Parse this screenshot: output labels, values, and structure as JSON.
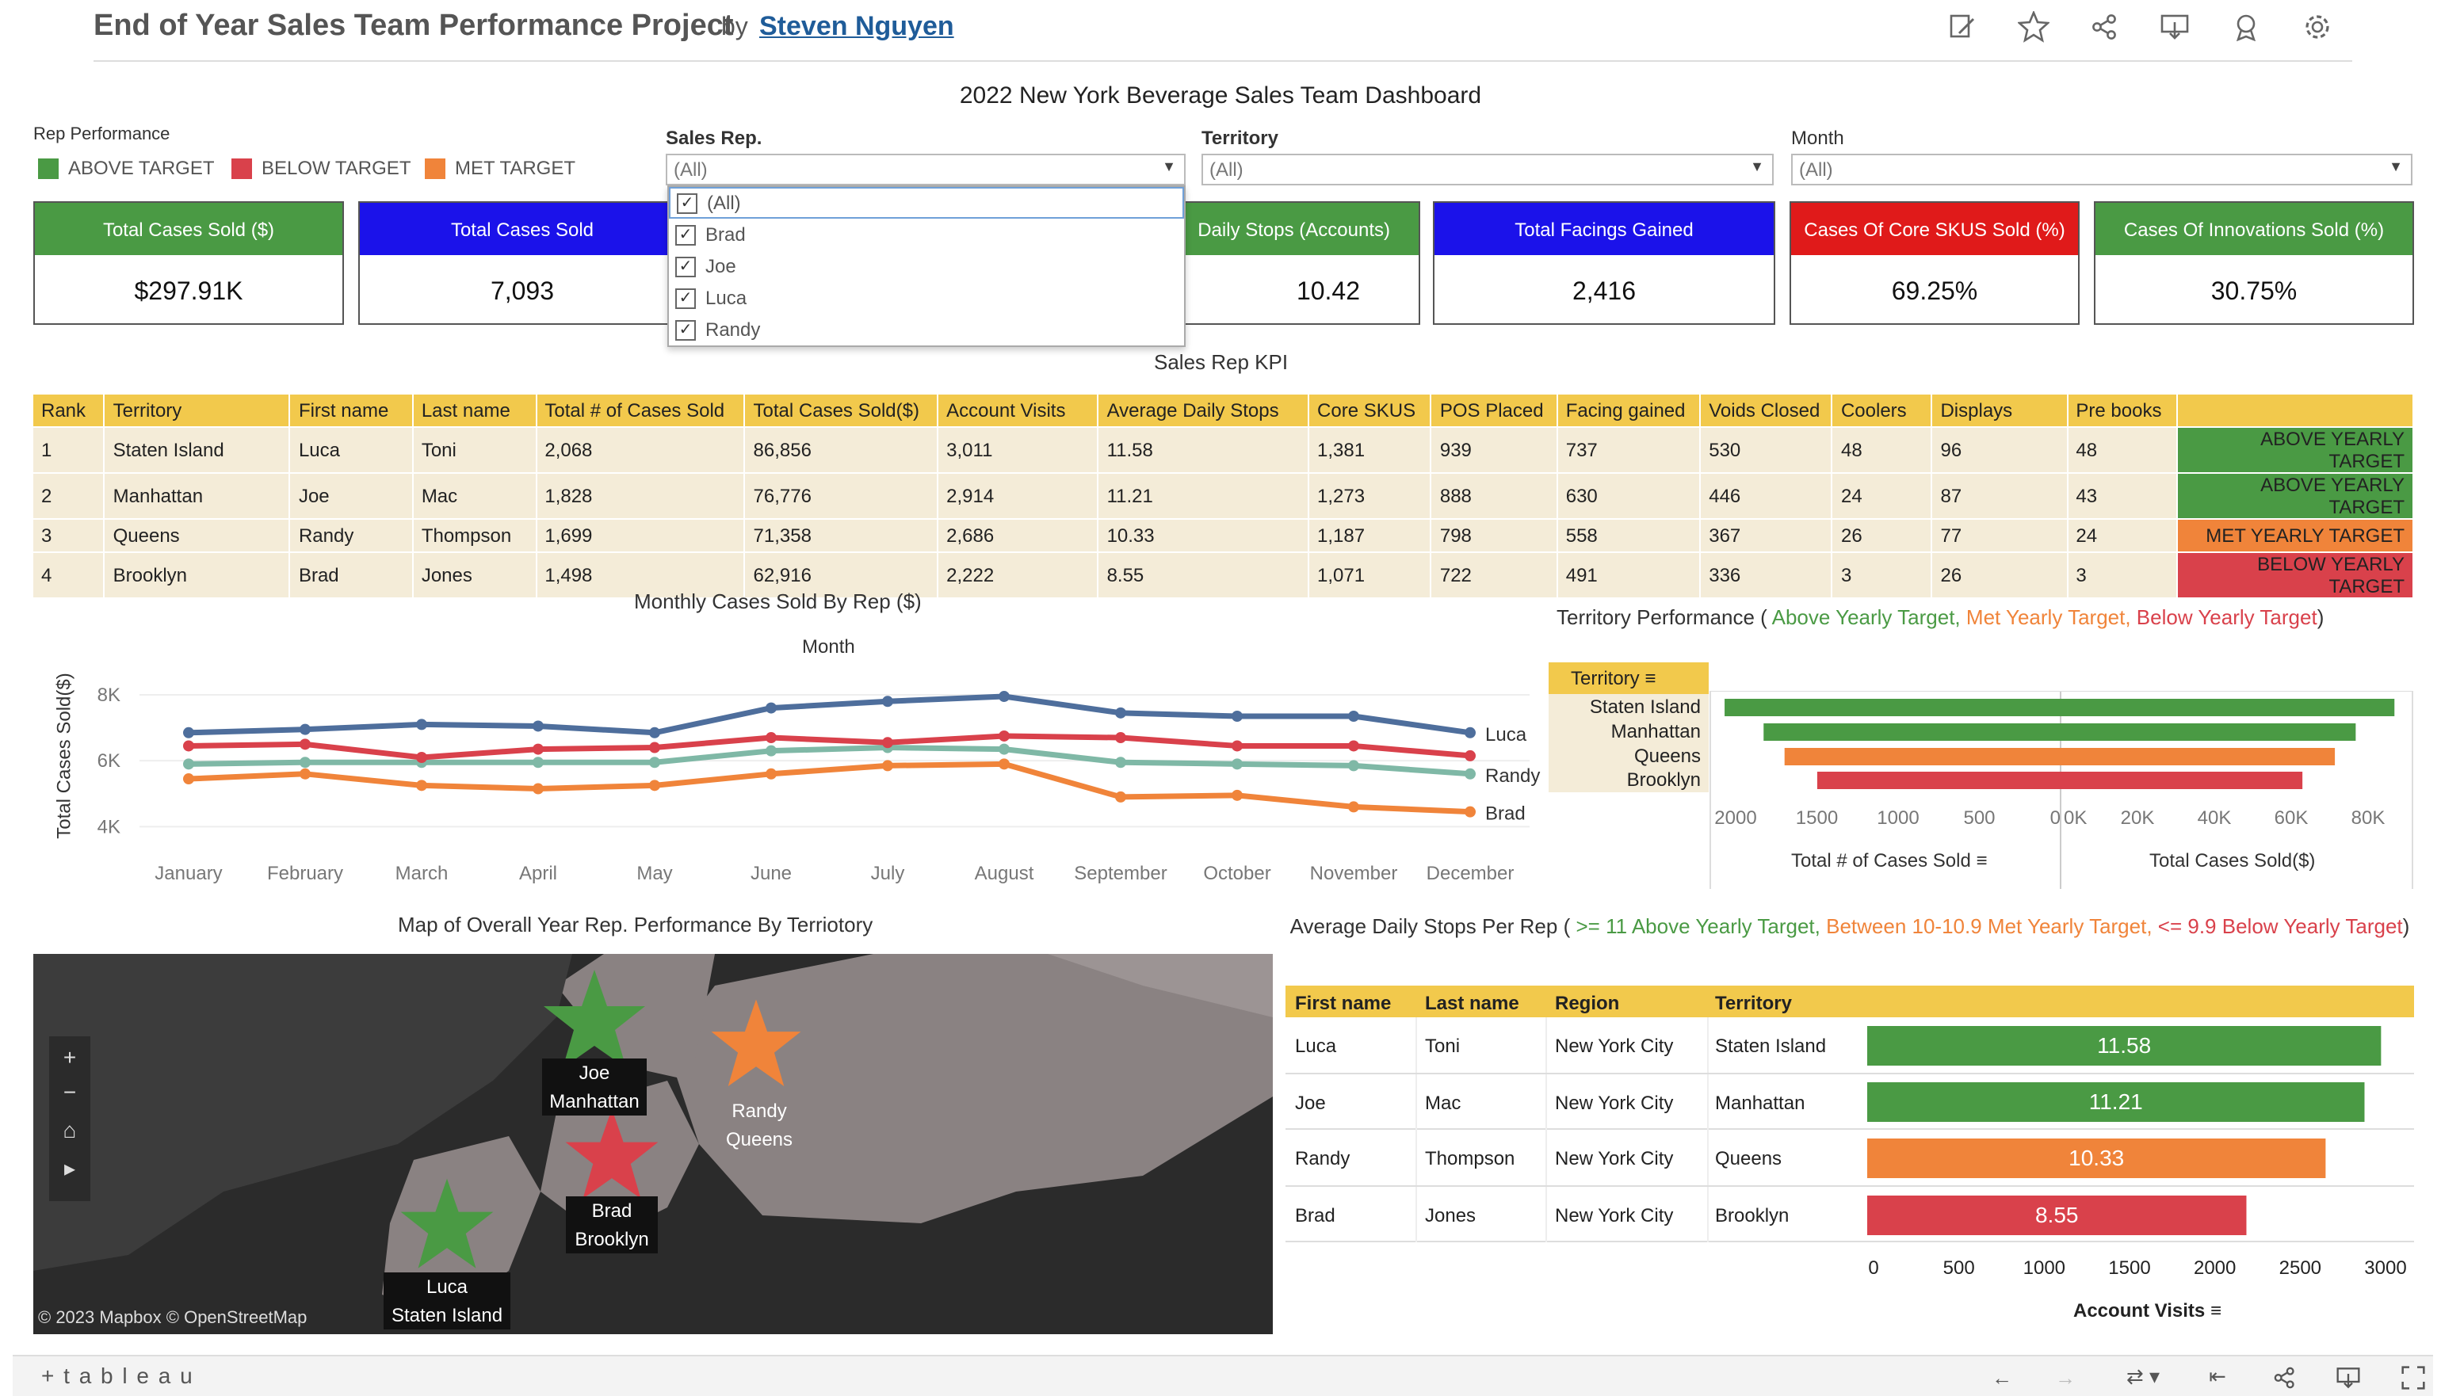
{
  "header": {
    "title": "End of Year Sales Team Performance Project",
    "by": "by",
    "author": "Steven Nguyen"
  },
  "toolbar_icons": [
    "edit-icon",
    "star-icon",
    "share-icon",
    "download-icon",
    "badge-icon",
    "gear-icon"
  ],
  "dashboard_title": "2022 New York Beverage Sales Team Dashboard",
  "legend": {
    "title": "Rep Performance",
    "items": [
      {
        "label": "ABOVE TARGET",
        "color": "#4a9a44"
      },
      {
        "label": "BELOW TARGET",
        "color": "#d9414b"
      },
      {
        "label": "MET TARGET",
        "color": "#f0843a"
      }
    ]
  },
  "filters": {
    "sales_rep": {
      "label": "Sales Rep.",
      "value": "(All)"
    },
    "territory": {
      "label": "Territory",
      "value": "(All)"
    },
    "month": {
      "label": "Month",
      "value": "(All)"
    }
  },
  "dropdown": {
    "items": [
      "(All)",
      "Brad",
      "Joe",
      "Luca",
      "Randy"
    ],
    "checkmark": "✓"
  },
  "kpis": [
    {
      "title": "Total Cases Sold ($)",
      "value": "$297.91K",
      "color": "#4a9a44"
    },
    {
      "title": "Total Cases Sold",
      "value": "7,093",
      "color": "#1b12ea"
    },
    {
      "title": "Daily Stops  (Accounts)",
      "value": "10.42",
      "color": "#4a9a44"
    },
    {
      "title": "Total Facings Gained",
      "value": "2,416",
      "color": "#1b12ea"
    },
    {
      "title": "Cases Of Core SKUS Sold (%)",
      "value": "69.25%",
      "color": "#e01a1a"
    },
    {
      "title": "Cases Of Innovations Sold (%)",
      "value": "30.75%",
      "color": "#4a9a44"
    }
  ],
  "kpi_table": {
    "title": "Sales Rep KPI",
    "headers": [
      "Rank",
      "Territory",
      "First name",
      "Last name",
      "Total # of Cases Sold",
      "Total Cases Sold($)",
      "Account Visits",
      "Average Daily Stops",
      "Core SKUS",
      "POS Placed",
      "Facing gained",
      "Voids Closed",
      "Coolers",
      "Displays",
      "Pre books",
      ""
    ],
    "rows": [
      [
        "1",
        "Staten Island",
        "Luca",
        "Toni",
        "2,068",
        "86,856",
        "3,011",
        "11.58",
        "1,381",
        "939",
        "737",
        "530",
        "48",
        "96",
        "48",
        "ABOVE YEARLY TARGET"
      ],
      [
        "2",
        "Manhattan",
        "Joe",
        "Mac",
        "1,828",
        "76,776",
        "2,914",
        "11.21",
        "1,273",
        "888",
        "630",
        "446",
        "24",
        "87",
        "43",
        "ABOVE YEARLY TARGET"
      ],
      [
        "3",
        "Queens",
        "Randy",
        "Thompson",
        "1,699",
        "71,358",
        "2,686",
        "10.33",
        "1,187",
        "798",
        "558",
        "367",
        "26",
        "77",
        "24",
        "MET YEARLY TARGET"
      ],
      [
        "4",
        "Brooklyn",
        "Brad",
        "Jones",
        "1,498",
        "62,916",
        "2,222",
        "8.55",
        "1,071",
        "722",
        "491",
        "336",
        "3",
        "26",
        "3",
        "BELOW YEARLY TARGET"
      ]
    ],
    "target_colors": [
      "#4a9a44",
      "#4a9a44",
      "#f0843a",
      "#d9414b"
    ]
  },
  "chart_data": [
    {
      "type": "line",
      "title": "Monthly Cases Sold By Rep ($)",
      "xlabel": "Month",
      "ylabel": "Total Cases Sold($)",
      "categories": [
        "January",
        "February",
        "March",
        "April",
        "May",
        "June",
        "July",
        "August",
        "September",
        "October",
        "November",
        "December"
      ],
      "y_ticks": [
        "8K",
        "6K",
        "4K"
      ],
      "ylim": [
        3600,
        8600
      ],
      "series": [
        {
          "name": "Luca",
          "color": "#4e6e9c",
          "values": [
            6850,
            6950,
            7100,
            7050,
            6850,
            7600,
            7800,
            7950,
            7450,
            7350,
            7350,
            6850
          ]
        },
        {
          "name": "Randy",
          "color": "#7fb8a6",
          "values": [
            5900,
            5950,
            5950,
            5950,
            5950,
            6300,
            6400,
            6350,
            5950,
            5900,
            5850,
            5600
          ]
        },
        {
          "name": "Brad",
          "color": "#f0843a",
          "values": [
            5450,
            5600,
            5250,
            5150,
            5250,
            5600,
            5850,
            5900,
            4900,
            4950,
            4600,
            4450
          ]
        },
        {
          "name": "",
          "color": "#d9414b",
          "values": [
            6450,
            6500,
            6100,
            6350,
            6400,
            6700,
            6550,
            6750,
            6700,
            6450,
            6450,
            6150
          ]
        }
      ]
    },
    {
      "type": "bar",
      "title": "Territory Performance ( Above Yearly Target,  Met Yearly Target,  Below Yearly Target)",
      "categories": [
        "Staten Island",
        "Manhattan",
        "Queens",
        "Brooklyn"
      ],
      "colors": [
        "#4a9a44",
        "#4a9a44",
        "#f0843a",
        "#d9414b"
      ],
      "series": [
        {
          "name": "Total # of Cases Sold",
          "values": [
            2068,
            1828,
            1699,
            1498
          ]
        },
        {
          "name": "Total Cases Sold($)",
          "values": [
            86856,
            76776,
            71358,
            62916
          ]
        }
      ],
      "left_ticks": [
        "2000",
        "1500",
        "1000",
        "500",
        "0"
      ],
      "right_ticks": [
        "0K",
        "20K",
        "40K",
        "60K",
        "80K"
      ],
      "left_xlim": [
        0,
        2200
      ],
      "right_xlim": [
        0,
        92000
      ],
      "header": "Territory"
    },
    {
      "type": "bar",
      "title": "Average Daily Stops Per Rep",
      "xlabel": "Account Visits",
      "categories": [
        "Luca",
        "Joe",
        "Randy",
        "Brad"
      ],
      "values": [
        3011,
        2914,
        2686,
        2222
      ],
      "labels": [
        "11.58",
        "11.21",
        "10.33",
        "8.55"
      ],
      "colors": [
        "#4a9a44",
        "#4a9a44",
        "#f0843a",
        "#d9414b"
      ],
      "x_ticks": [
        "0",
        "500",
        "1000",
        "1500",
        "2000",
        "2500",
        "3000"
      ],
      "xlim": [
        0,
        3050
      ]
    }
  ],
  "territory_title": {
    "prefix": "Territory Performance (",
    "above": " Above Yearly Target,",
    "met": "  Met Yearly Target,",
    "below": "  Below Yearly Target",
    "suffix": ")"
  },
  "territory_axes": {
    "left": "Total # of Cases Sold",
    "right": "Total Cases Sold($)"
  },
  "stops": {
    "title_prefix": "Average Daily Stops Per Rep (",
    "above": " >= 11 Above Yearly Target,",
    "met": " Between 10-10.9 Met Yearly Target,",
    "below": " <= 9.9 Below Yearly Target",
    "suffix": ")",
    "headers": [
      "First name",
      "Last name",
      "Region",
      "Territory"
    ],
    "rows": [
      [
        "Luca",
        "Toni",
        "New York City",
        "Staten Island"
      ],
      [
        "Joe",
        "Mac",
        "New York City",
        "Manhattan"
      ],
      [
        "Randy",
        "Thompson",
        "New York City",
        "Queens"
      ],
      [
        "Brad",
        "Jones",
        "New York City",
        "Brooklyn"
      ]
    ],
    "axis_label": "Account Visits"
  },
  "map": {
    "title": "Map of Overall Year Rep. Performance By Terriotory",
    "attribution": "© 2023 Mapbox  © OpenStreetMap",
    "labels": [
      {
        "name": "Joe",
        "area": "Manhattan",
        "color": "#4a9a44"
      },
      {
        "name": "Randy",
        "area": "Queens",
        "color": "#f0843a"
      },
      {
        "name": "Brad",
        "area": "Brooklyn",
        "color": "#d9414b"
      },
      {
        "name": "Luca",
        "area": "Staten Island",
        "color": "#4a9a44"
      }
    ],
    "controls": [
      "+",
      "−",
      "⌂",
      "▸"
    ]
  },
  "footer": {
    "brand": "+ t a b l e a u"
  },
  "colors": {
    "above": "#4a9a44",
    "met": "#f0843a",
    "below": "#d9414b",
    "header_yellow": "#f2c94c",
    "link": "#1f5c99"
  }
}
